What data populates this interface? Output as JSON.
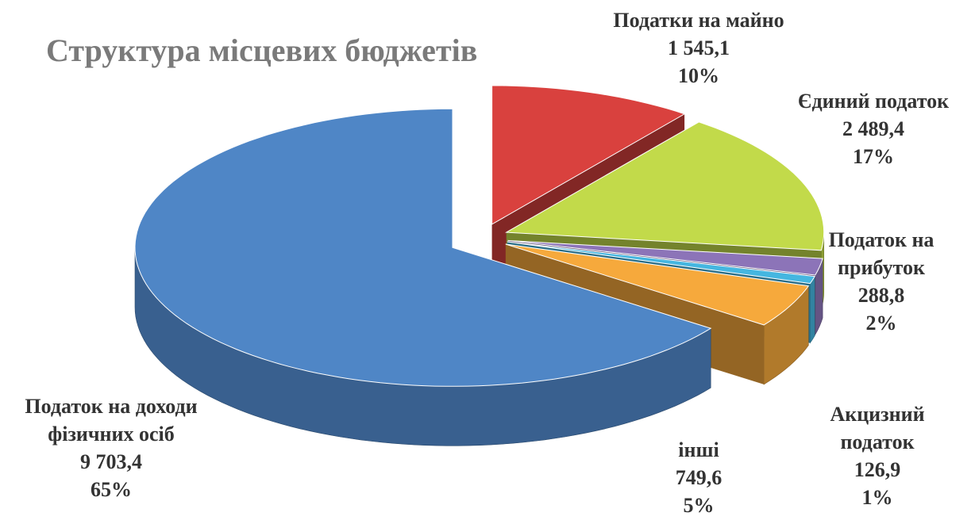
{
  "chart_data": {
    "type": "pie3d",
    "title": "Структура місцевих бюджетів",
    "categories": [
      "Податки на майно",
      "Єдиний податок",
      "Податок на прибуток",
      "Акцизний податок",
      "інші",
      "Податок на доходи фізичних осіб"
    ],
    "values": [
      1545.1,
      2489.4,
      288.8,
      126.9,
      749.6,
      9703.4
    ],
    "value_labels": [
      "1 545,1",
      "2 489,4",
      "288,8",
      "126,9",
      "749,6",
      "9 703,4"
    ],
    "percent_labels": [
      "10%",
      "17%",
      "2%",
      "1%",
      "5%",
      "65%"
    ],
    "colors": [
      "#d9413e",
      "#c2da4a",
      "#8c74b8",
      "#45b6e0",
      "#f6a93c",
      "#4f86c6"
    ]
  }
}
